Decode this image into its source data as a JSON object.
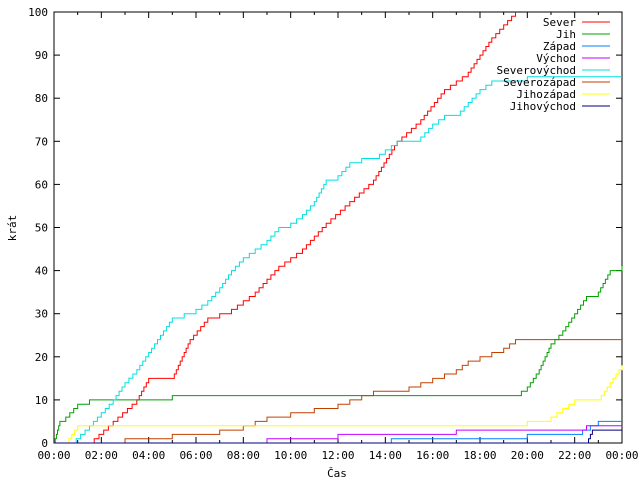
{
  "chart_data": {
    "type": "line",
    "title": "",
    "xlabel": "Čas",
    "ylabel": "krát",
    "xlim": [
      "00:00",
      "24:00"
    ],
    "ylim": [
      0,
      100
    ],
    "grid": false,
    "legend_position": "top-right",
    "x_tick_labels": [
      "00:00",
      "02:00",
      "04:00",
      "06:00",
      "08:00",
      "10:00",
      "12:00",
      "14:00",
      "16:00",
      "18:00",
      "20:00",
      "22:00",
      "00:00"
    ],
    "y_tick_labels": [
      "0",
      "10",
      "20",
      "30",
      "40",
      "50",
      "60",
      "70",
      "80",
      "90",
      "100"
    ],
    "y_ticks": [
      0,
      10,
      20,
      30,
      40,
      50,
      60,
      70,
      80,
      90,
      100
    ],
    "series": [
      {
        "name": "Sever",
        "color": "#ff0000",
        "x": [
          "00:00",
          "01:30",
          "02:30",
          "03:30",
          "04:00",
          "05:00",
          "05:45",
          "06:30",
          "07:30",
          "08:30",
          "09:30",
          "10:30",
          "11:30",
          "12:30",
          "13:30",
          "14:30",
          "15:30",
          "16:30",
          "17:30",
          "18:30",
          "19:30"
        ],
        "y": [
          0,
          0,
          5,
          10,
          15,
          15,
          24,
          29,
          31,
          35,
          41,
          45,
          51,
          56,
          61,
          70,
          75,
          82,
          86,
          94,
          100
        ]
      },
      {
        "name": "Jih",
        "color": "#00a000",
        "x": [
          "00:00",
          "00:15",
          "00:30",
          "01:00",
          "01:30",
          "04:30",
          "05:00",
          "08:00",
          "12:00",
          "16:00",
          "19:30",
          "20:00",
          "20:30",
          "21:00",
          "21:30",
          "22:00",
          "22:30",
          "23:00",
          "23:30",
          "24:00"
        ],
        "y": [
          0,
          5,
          6,
          9,
          10,
          10,
          11,
          11,
          11,
          11,
          11,
          13,
          17,
          23,
          26,
          30,
          34,
          35,
          40,
          41
        ]
      },
      {
        "name": "Západ",
        "color": "#0080ff",
        "x": [
          "00:00",
          "14:00",
          "14:15",
          "19:00",
          "20:00",
          "22:00",
          "23:00",
          "24:00"
        ],
        "y": [
          0,
          0,
          1,
          1,
          2,
          2,
          5,
          5
        ]
      },
      {
        "name": "Východ",
        "color": "#c000ff",
        "x": [
          "00:00",
          "08:30",
          "09:00",
          "10:00",
          "12:00",
          "13:30",
          "17:00",
          "19:30",
          "22:30",
          "23:00",
          "24:00"
        ],
        "y": [
          0,
          0,
          1,
          1,
          2,
          2,
          3,
          3,
          4,
          4,
          4
        ]
      },
      {
        "name": "Severovýchod",
        "color": "#00e0e0",
        "x": [
          "00:00",
          "00:45",
          "01:30",
          "02:00",
          "02:30",
          "03:00",
          "03:30",
          "04:00",
          "04:30",
          "05:00",
          "05:30",
          "06:00",
          "06:30",
          "07:00",
          "07:30",
          "08:00",
          "08:30",
          "09:00",
          "09:30",
          "10:00",
          "10:30",
          "11:00",
          "11:30",
          "12:00",
          "12:30",
          "13:00",
          "13:30",
          "14:00",
          "14:30",
          "15:00",
          "15:30",
          "16:00",
          "16:30",
          "17:00",
          "17:30",
          "18:00",
          "18:30",
          "19:00",
          "20:00",
          "24:00"
        ],
        "y": [
          0,
          0,
          4,
          7,
          10,
          14,
          17,
          21,
          25,
          29,
          30,
          31,
          33,
          36,
          40,
          43,
          45,
          47,
          50,
          51,
          53,
          56,
          61,
          62,
          65,
          66,
          66,
          68,
          70,
          70,
          71,
          74,
          76,
          76,
          79,
          82,
          84,
          84,
          85,
          85
        ]
      },
      {
        "name": "Severozápad",
        "color": "#c04000",
        "x": [
          "00:00",
          "02:00",
          "03:00",
          "03:30",
          "05:00",
          "07:00",
          "08:00",
          "09:00",
          "10:00",
          "11:00",
          "12:00",
          "12:30",
          "13:30",
          "14:30",
          "15:00",
          "15:30",
          "16:00",
          "16:30",
          "17:00",
          "17:30",
          "18:00",
          "18:30",
          "19:00",
          "19:30",
          "24:00"
        ],
        "y": [
          0,
          0,
          1,
          1,
          2,
          3,
          4,
          6,
          7,
          8,
          9,
          10,
          12,
          12,
          13,
          14,
          15,
          16,
          17,
          19,
          20,
          21,
          22,
          24,
          24
        ]
      },
      {
        "name": "Jihozápad",
        "color": "#ffff00",
        "x": [
          "00:00",
          "00:30",
          "00:45",
          "01:00",
          "02:00",
          "04:00",
          "06:00",
          "08:00",
          "12:00",
          "16:00",
          "19:30",
          "20:00",
          "20:30",
          "21:00",
          "21:30",
          "22:00",
          "22:30",
          "23:00",
          "23:30",
          "24:00"
        ],
        "y": [
          0,
          0,
          2,
          4,
          4,
          4,
          4,
          4,
          4,
          4,
          4,
          5,
          5,
          6,
          8,
          10,
          10,
          10,
          14,
          18
        ]
      },
      {
        "name": "Jihovýchod",
        "color": "#000080",
        "x": [
          "00:00",
          "22:30",
          "22:45",
          "24:00"
        ],
        "y": [
          0,
          0,
          3,
          3
        ]
      }
    ]
  }
}
